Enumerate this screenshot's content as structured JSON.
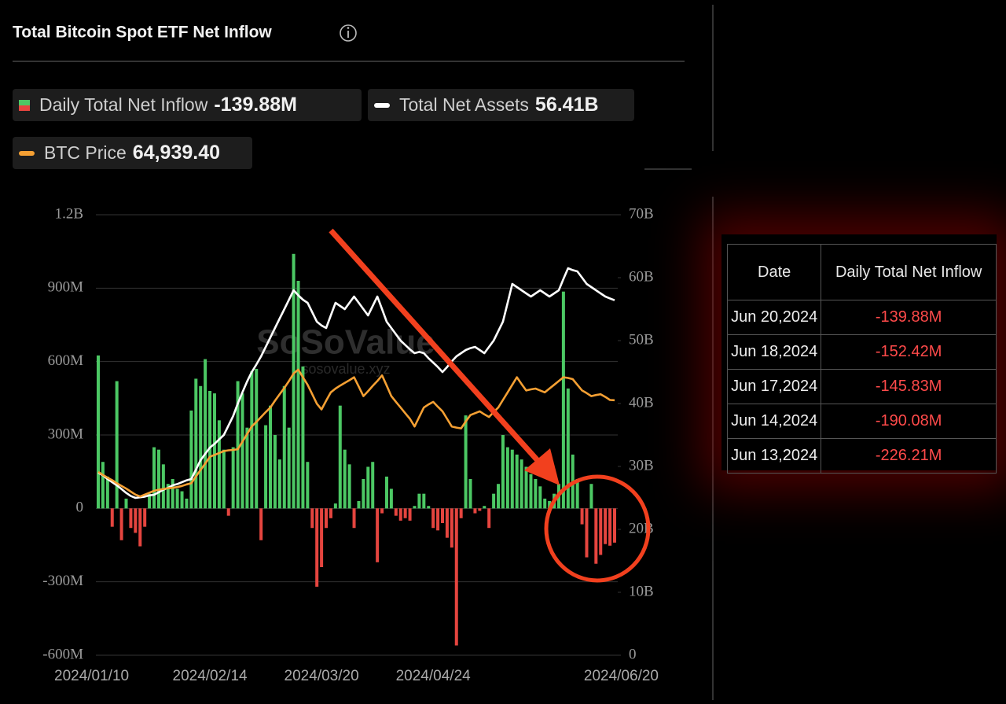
{
  "chart_data": {
    "type": "bar",
    "title": "Total Bitcoin Spot ETF Net Inflow",
    "watermark": [
      "SoSoValue",
      "sosovalue.xyz"
    ],
    "categories": [
      "2024/01/10",
      null,
      null,
      null,
      null,
      null,
      null,
      null,
      null,
      null,
      null,
      null,
      null,
      null,
      null,
      null,
      null,
      null,
      null,
      null,
      null,
      null,
      null,
      null,
      "2024/02/14",
      null,
      null,
      null,
      null,
      null,
      null,
      null,
      null,
      null,
      null,
      null,
      null,
      null,
      null,
      null,
      null,
      null,
      null,
      null,
      null,
      null,
      null,
      null,
      "2024/03/20",
      null,
      null,
      null,
      null,
      null,
      null,
      null,
      null,
      null,
      null,
      null,
      null,
      null,
      null,
      null,
      null,
      null,
      null,
      null,
      null,
      null,
      null,
      null,
      "2024/04/24",
      null,
      null,
      null,
      null,
      null,
      null,
      null,
      null,
      null,
      null,
      null,
      null,
      null,
      null,
      null,
      null,
      null,
      null,
      null,
      null,
      null,
      null,
      null,
      null,
      null,
      null,
      null,
      null,
      null,
      null,
      null,
      null,
      null,
      null,
      null,
      null,
      null,
      null,
      "2024/06/20"
    ],
    "series": [
      {
        "name": "Daily Total Net Inflow",
        "type": "bar",
        "positive_color": "#4cc864",
        "negative_color": "#e5453f",
        "current": {
          "value": -139.88,
          "label": "-139.88M"
        },
        "values": [
          625,
          190,
          130,
          -75,
          520,
          -130,
          40,
          -80,
          -100,
          -155,
          -75,
          60,
          250,
          240,
          180,
          100,
          120,
          80,
          70,
          40,
          400,
          530,
          500,
          610,
          480,
          470,
          360,
          240,
          -30,
          250,
          520,
          470,
          330,
          560,
          570,
          -130,
          340,
          420,
          300,
          200,
          500,
          330,
          1040,
          930,
          580,
          190,
          -80,
          -320,
          -240,
          -80,
          -40,
          20,
          420,
          240,
          180,
          -80,
          30,
          120,
          170,
          190,
          -220,
          -20,
          130,
          80,
          -30,
          -50,
          -40,
          -50,
          10,
          60,
          60,
          10,
          -80,
          -90,
          -60,
          -120,
          -160,
          -560,
          -40,
          380,
          120,
          -20,
          -10,
          10,
          -80,
          60,
          100,
          300,
          250,
          240,
          220,
          200,
          170,
          140,
          120,
          90,
          40,
          30,
          60,
          100,
          886,
          490,
          220,
          120,
          -65,
          -200,
          100,
          -226.21,
          -190.08,
          -145.83,
          -152.42,
          -139.88
        ]
      },
      {
        "name": "Total Net Assets",
        "type": "line",
        "axis": "y2",
        "color": "#ffffff",
        "current": {
          "value": 56.41,
          "label": "56.41B"
        },
        "values": [
          29,
          28.6,
          28,
          27.5,
          27,
          26.4,
          25.8,
          25.3,
          25,
          25.1,
          25.2,
          25.4,
          25.5,
          25.9,
          26.3,
          26.6,
          27,
          27.2,
          27.5,
          27.8,
          28,
          29.5,
          31,
          32,
          33,
          33.6,
          34.3,
          35,
          36.5,
          38,
          40,
          41.8,
          43.5,
          45,
          46.2,
          47.5,
          49,
          50.5,
          52,
          53.5,
          55,
          56.5,
          58,
          57.2,
          56.5,
          56,
          54.5,
          53,
          52.4,
          52,
          54,
          56,
          55.5,
          55,
          56,
          57,
          56,
          55,
          54,
          55.5,
          57,
          55,
          53,
          52,
          51,
          50,
          49.3,
          48.6,
          48,
          48.2,
          48,
          47.2,
          46.5,
          45.8,
          45,
          45.8,
          46.7,
          47.5,
          48,
          48.5,
          48.8,
          49,
          48.5,
          48,
          49,
          50,
          51.5,
          53,
          56,
          59,
          58.5,
          58,
          57.5,
          57,
          57.5,
          58,
          57.5,
          57,
          57.5,
          58,
          59.8,
          61.5,
          61.2,
          61,
          60,
          59,
          58.5,
          58,
          57.5,
          57,
          56.7,
          56.41
        ]
      },
      {
        "name": "BTC Price",
        "type": "line",
        "axis": "y3",
        "color": "#f5a033",
        "current": {
          "value": 64939.4,
          "label": "64,939.40"
        },
        "values": [
          46000,
          45200,
          44500,
          43800,
          43000,
          42300,
          41600,
          40800,
          40000,
          39500,
          40000,
          40500,
          41000,
          41300,
          41500,
          41700,
          41800,
          42000,
          42300,
          42700,
          43000,
          44800,
          46500,
          48200,
          50000,
          50500,
          51000,
          51500,
          51700,
          51800,
          52000,
          54000,
          56000,
          58000,
          59200,
          60500,
          61800,
          63000,
          64800,
          66500,
          68200,
          70000,
          72000,
          73000,
          71000,
          69000,
          66500,
          64000,
          62500,
          64800,
          67000,
          68000,
          68800,
          69500,
          70200,
          71000,
          68500,
          66000,
          67300,
          68700,
          70000,
          71500,
          68800,
          66000,
          64500,
          63000,
          61500,
          60000,
          58000,
          60500,
          63000,
          63800,
          64500,
          63200,
          62000,
          60000,
          58000,
          57700,
          57500,
          59300,
          61000,
          61500,
          62000,
          61200,
          60500,
          61800,
          63000,
          65000,
          67000,
          69000,
          71000,
          69200,
          67500,
          67800,
          68000,
          67500,
          67000,
          68000,
          69000,
          70000,
          71000,
          70800,
          70500,
          69000,
          67500,
          66800,
          66000,
          66300,
          66500,
          65800,
          65000,
          64939.4
        ]
      }
    ],
    "ylim": [
      -600,
      1200
    ],
    "yticks": [
      {
        "value": -600,
        "label": "-600M"
      },
      {
        "value": -300,
        "label": "-300M"
      },
      0,
      {
        "value": 300,
        "label": "300M"
      },
      {
        "value": 600,
        "label": "600M"
      },
      {
        "value": 900,
        "label": "900M"
      },
      {
        "value": 1200,
        "label": "1.2B"
      }
    ],
    "y2lim": [
      0,
      70
    ],
    "y2ticks": [
      0,
      {
        "value": 10,
        "label": "10B"
      },
      {
        "value": 20,
        "label": "20B"
      },
      {
        "value": 30,
        "label": "30B"
      },
      {
        "value": 40,
        "label": "40B"
      },
      {
        "value": 50,
        "label": "50B"
      },
      {
        "value": 60,
        "label": "60B"
      },
      {
        "value": 70,
        "label": "70B"
      }
    ],
    "y3lim": [
      -2400,
      113900
    ],
    "grid": true
  },
  "table": {
    "header": [
      "Date",
      "Daily Total Net Inflow"
    ],
    "rows": [
      [
        "Jun 20,2024",
        "-139.88M"
      ],
      [
        "Jun 18,2024",
        "-152.42M"
      ],
      [
        "Jun 17,2024",
        "-145.83M"
      ],
      [
        "Jun 14,2024",
        "-190.08M"
      ],
      [
        "Jun 13,2024",
        "-226.21M"
      ]
    ]
  }
}
